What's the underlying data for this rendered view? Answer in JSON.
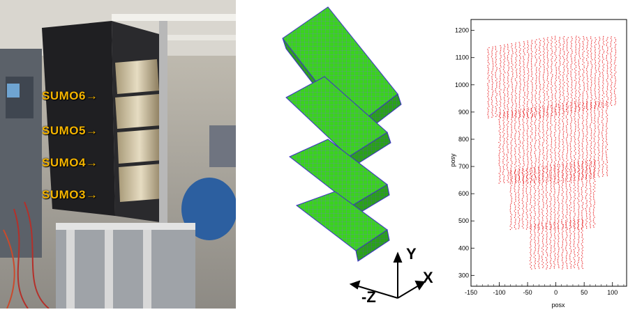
{
  "photo": {
    "labels": [
      "SUMO6",
      "SUMO5",
      "SUMO4",
      "SUMO3"
    ],
    "arrow_glyph": "→"
  },
  "geometry": {
    "axes": {
      "y": "Y",
      "x": "X",
      "z": "-Z"
    }
  },
  "chart_data": {
    "type": "scatter",
    "xlabel": "posx",
    "ylabel": "posy",
    "xticks": [
      "-150",
      "-100",
      "-50",
      "0",
      "50",
      "100"
    ],
    "yticks": [
      "300",
      "400",
      "500",
      "600",
      "700",
      "800",
      "900",
      "1000",
      "1100",
      "1200"
    ],
    "xlim": [
      -150,
      125
    ],
    "ylim": [
      260,
      1240
    ],
    "point_color": "#e8191c",
    "blocks": [
      {
        "name": "",
        "x_range": [
          -120,
          110
        ],
        "y_range": [
          880,
          1170
        ],
        "tilt": 40
      },
      {
        "name": "",
        "x_range": [
          -100,
          95
        ],
        "y_range": [
          640,
          930
        ],
        "tilt": 35
      },
      {
        "name": "",
        "x_range": [
          -80,
          70
        ],
        "y_range": [
          470,
          720
        ],
        "tilt": 30
      },
      {
        "name": "",
        "x_range": [
          -45,
          50
        ],
        "y_range": [
          325,
          520
        ],
        "tilt": 25
      }
    ]
  }
}
